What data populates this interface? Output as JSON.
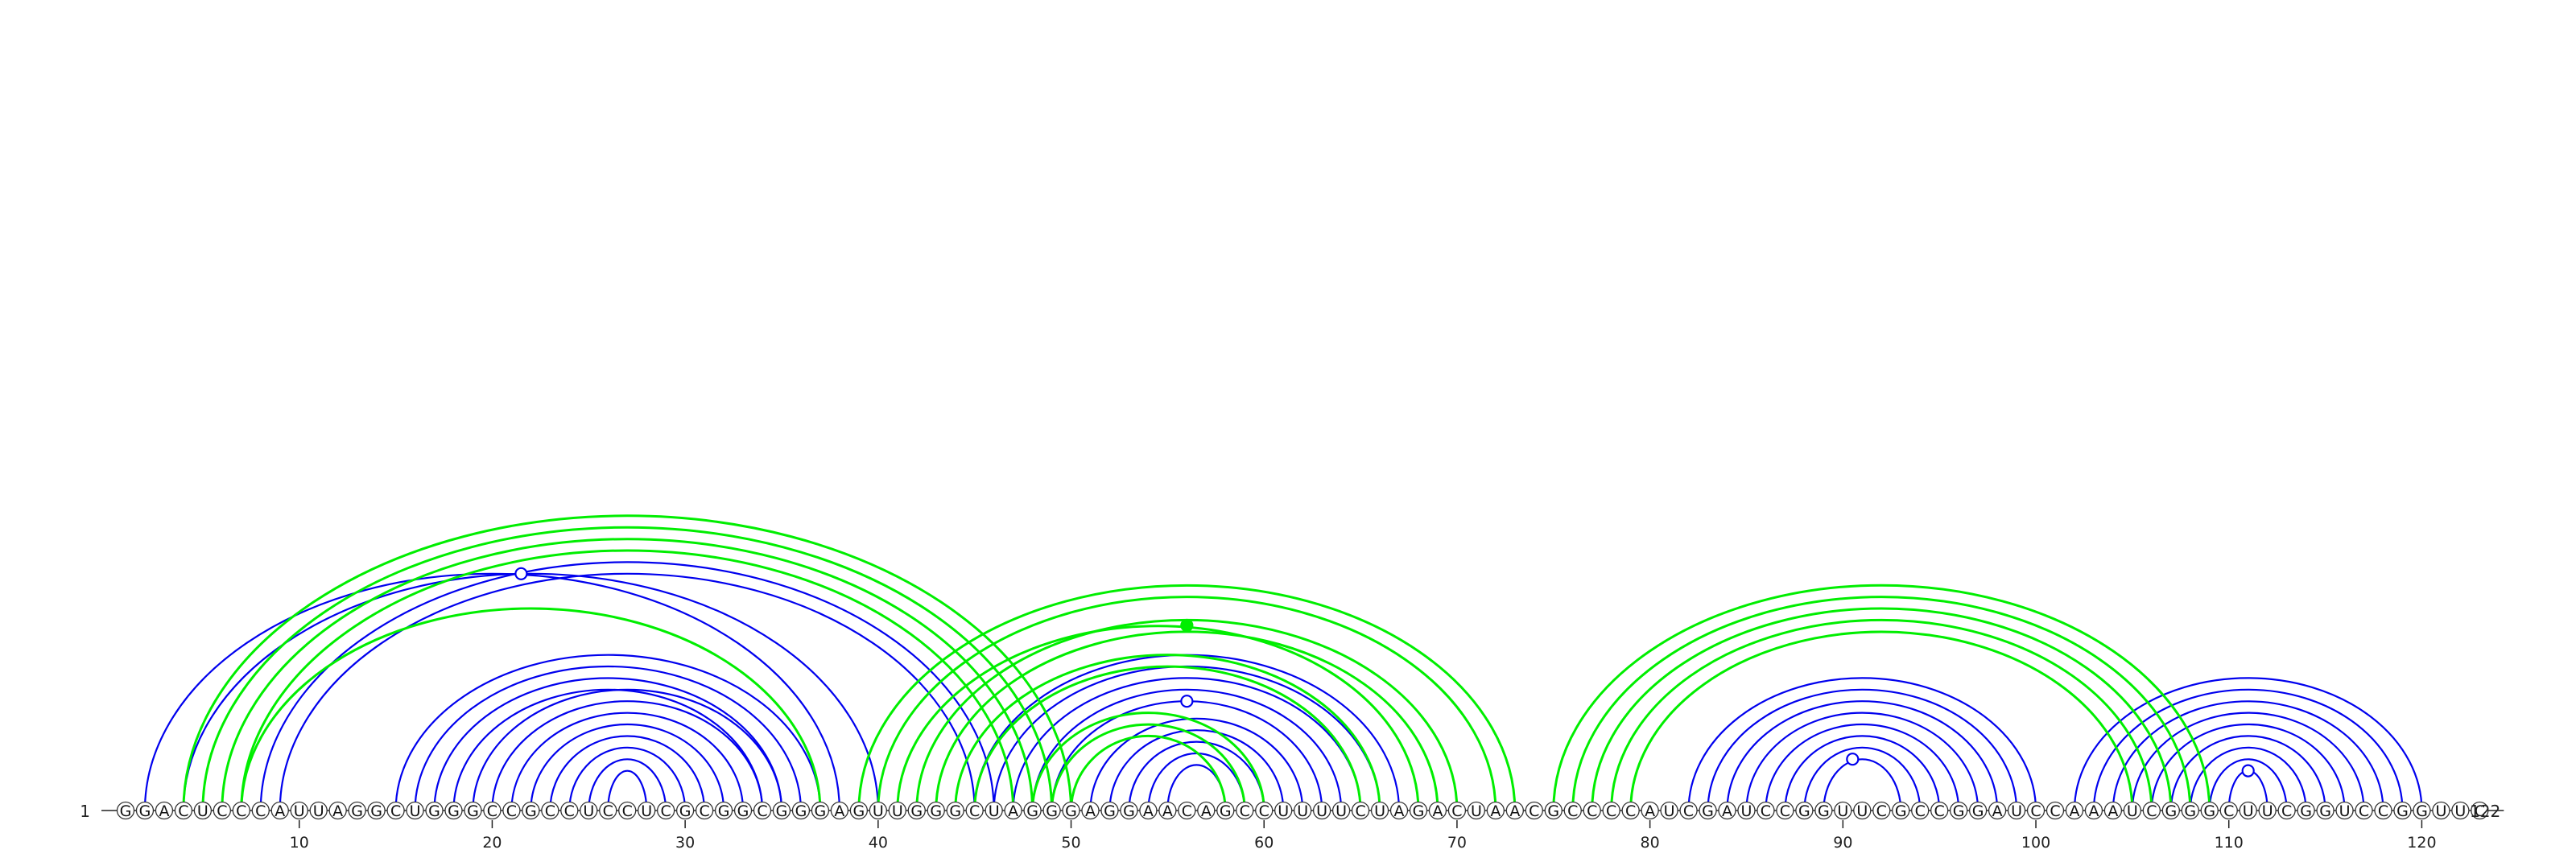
{
  "sequence": "GGACUCCCAUUAGGCUGGGCCGCCUCCUCGCGGCGGGAGUUGGGCUAGGGAGGAACAGCCUUUUCUAGACUAACGCCCCAUCGAUCCGGUUCGCCGGAUCCAAAUCGGGCUUCGGUCCGGUUC",
  "start_label": "1",
  "end_label": "122",
  "ticks": [
    10,
    20,
    30,
    40,
    50,
    60,
    70,
    80,
    90,
    100,
    110,
    120
  ],
  "colors": {
    "reference": "#0000ee",
    "predicted": "#00ee00",
    "nucleotide_stroke": "#333333",
    "axis": "#222222"
  },
  "reference_pairs": [
    [
      2,
      38
    ],
    [
      4,
      40
    ],
    [
      5,
      49
    ],
    [
      6,
      48
    ],
    [
      7,
      47
    ],
    [
      8,
      46
    ],
    [
      9,
      45
    ],
    [
      15,
      37
    ],
    [
      16,
      36
    ],
    [
      17,
      35
    ],
    [
      18,
      34
    ],
    [
      20,
      34
    ],
    [
      21,
      33
    ],
    [
      22,
      32
    ],
    [
      23,
      31
    ],
    [
      24,
      30
    ],
    [
      25,
      29
    ],
    [
      26,
      28
    ],
    [
      19,
      35
    ],
    [
      45,
      67
    ],
    [
      46,
      66
    ],
    [
      47,
      65
    ],
    [
      48,
      64
    ],
    [
      49,
      63
    ],
    [
      51,
      62
    ],
    [
      52,
      61
    ],
    [
      53,
      60
    ],
    [
      54,
      59
    ],
    [
      55,
      58
    ],
    [
      82,
      100
    ],
    [
      83,
      99
    ],
    [
      84,
      98
    ],
    [
      85,
      97
    ],
    [
      86,
      96
    ],
    [
      87,
      95
    ],
    [
      88,
      94
    ],
    [
      89,
      93
    ],
    [
      102,
      120
    ],
    [
      103,
      119
    ],
    [
      104,
      118
    ],
    [
      105,
      117
    ],
    [
      106,
      116
    ],
    [
      107,
      115
    ],
    [
      108,
      114
    ],
    [
      109,
      113
    ],
    [
      110,
      112
    ]
  ],
  "predicted_pairs": [
    [
      4,
      50
    ],
    [
      5,
      49
    ],
    [
      6,
      48
    ],
    [
      7,
      47
    ],
    [
      37,
      7
    ],
    [
      39,
      73
    ],
    [
      40,
      72
    ],
    [
      41,
      68
    ],
    [
      42,
      70
    ],
    [
      43,
      69
    ],
    [
      44,
      66
    ],
    [
      45,
      65
    ],
    [
      48,
      60
    ],
    [
      49,
      59
    ],
    [
      50,
      58
    ],
    [
      75,
      109
    ],
    [
      76,
      108
    ],
    [
      77,
      107
    ],
    [
      78,
      106
    ],
    [
      79,
      105
    ]
  ],
  "markers": [
    {
      "pos": 21.5,
      "set": "reference",
      "filled": false
    },
    {
      "pos": 56,
      "set": "predicted",
      "filled": true
    },
    {
      "pos": 56,
      "set": "reference",
      "filled": false
    },
    {
      "pos": 90.5,
      "set": "reference",
      "filled": false
    },
    {
      "pos": 111,
      "set": "reference",
      "filled": false
    }
  ]
}
